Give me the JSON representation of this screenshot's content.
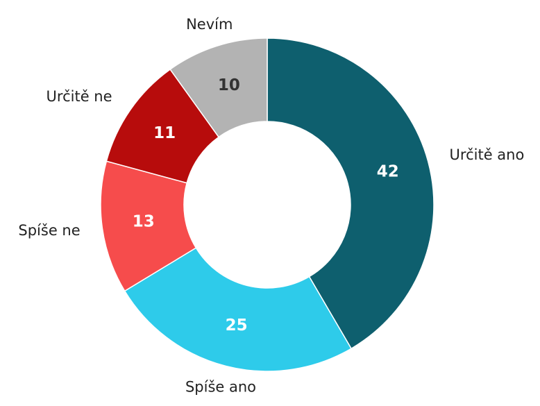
{
  "chart_data": {
    "type": "donut",
    "categories": [
      "Určitě ano",
      "Spíše ano",
      "Spíše ne",
      "Určitě ne",
      "Nevím"
    ],
    "values": [
      42,
      25,
      13,
      11,
      10
    ],
    "colors": [
      "#0e5f6e",
      "#2ecbea",
      "#f64c4c",
      "#b70c0c",
      "#b3b3b3"
    ],
    "label_colors": [
      "#ffffff",
      "#ffffff",
      "#ffffff",
      "#ffffff",
      "#333333"
    ]
  }
}
